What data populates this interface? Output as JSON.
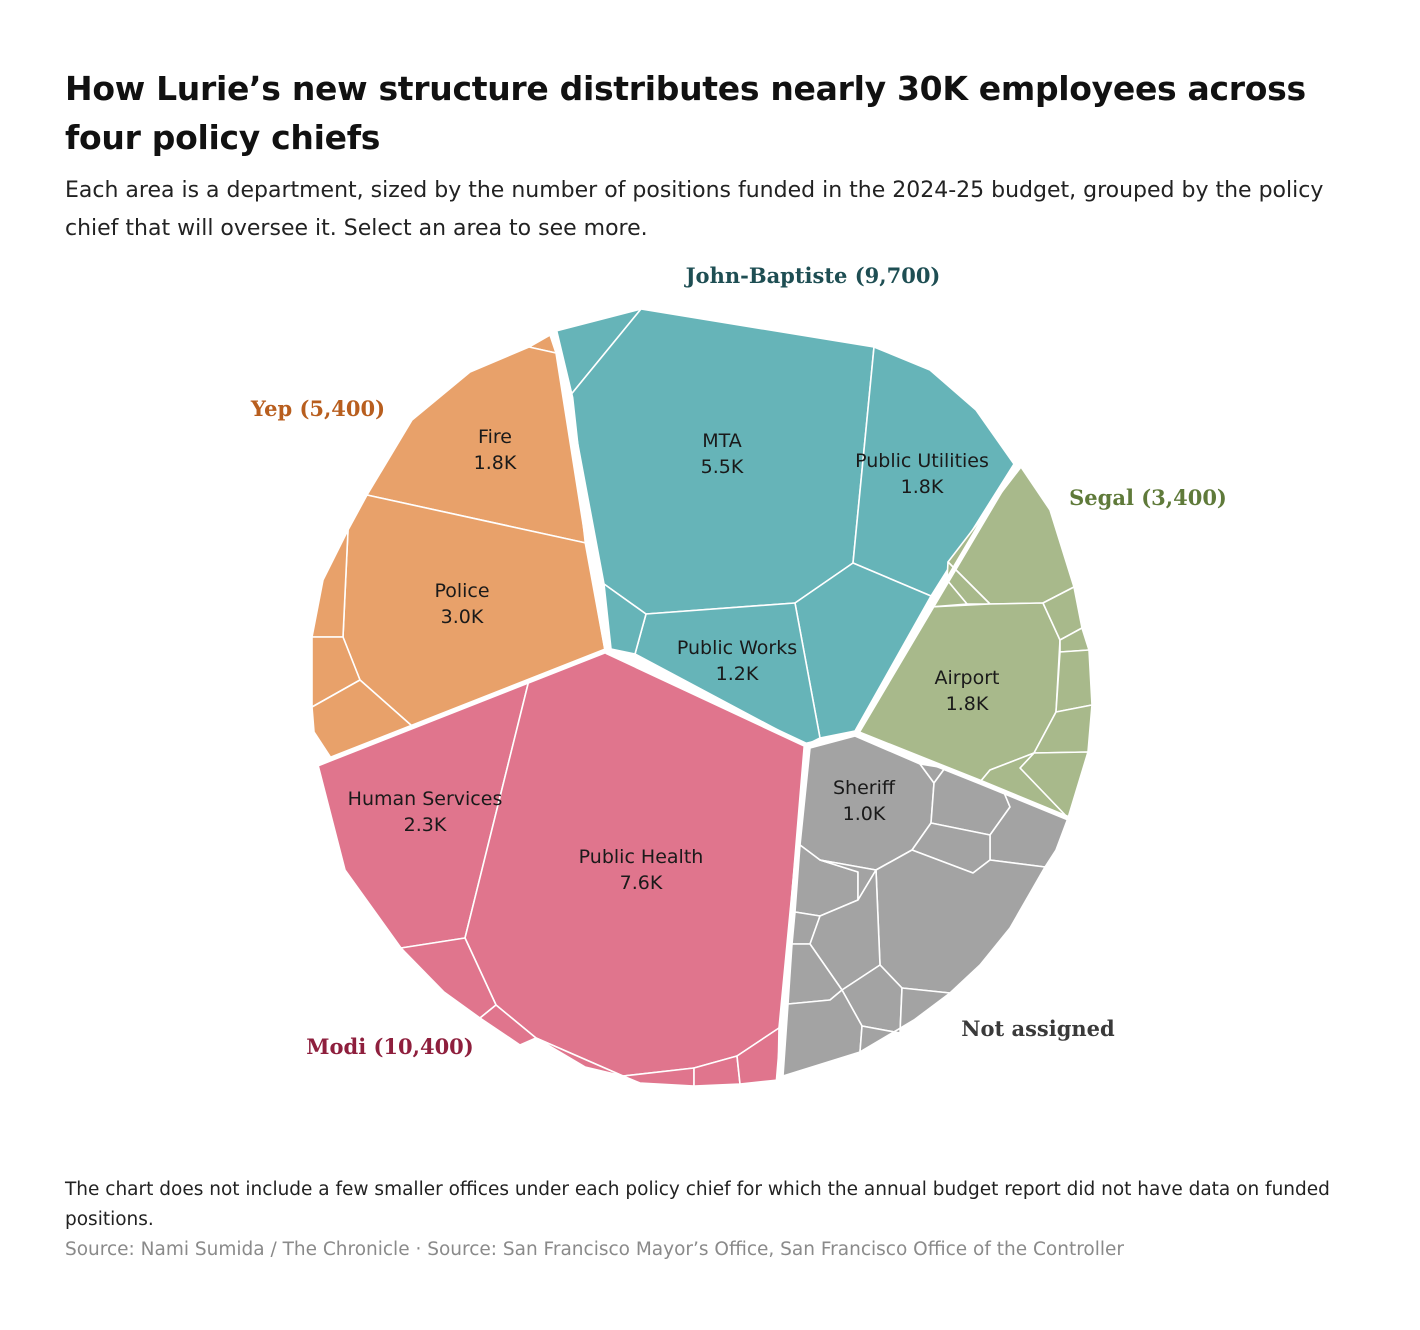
{
  "header": {
    "title": "How Lurie’s new structure distributes nearly 30K employees across four policy chiefs",
    "subtitle": "Each area is a department, sized by the number of positions funded in the 2024-25 budget, grouped by the policy chief that will oversee it. Select an area to see more."
  },
  "footer": {
    "note": "The chart does not include a few smaller offices under each policy chief for which the annual budget report did not have data on funded positions.",
    "source": "Source: Nami Sumida / The Chronicle · Source: San Francisco Mayor’s Office, San Francisco Office of the Controller"
  },
  "colors": {
    "John-Baptiste": "#66b4b8",
    "Yep": "#e8a16a",
    "Segal": "#a8b98b",
    "Modi": "#e0758d",
    "Not assigned": "#a3a3a3",
    "label_John-Baptiste": "#1e4e53",
    "label_Yep": "#b85e1e",
    "label_Segal": "#5f7a3a",
    "label_Modi": "#8e1f3d",
    "label_Not assigned": "#3a3a3a"
  },
  "chart_data": {
    "type": "voronoi-treemap",
    "units": "funded positions (2024-25 budget)",
    "groups": [
      {
        "name": "John-Baptiste",
        "label": "John-Baptiste (9,700)",
        "total": 9700,
        "departments": [
          {
            "name": "MTA",
            "value_label": "5.5K",
            "value": 5500
          },
          {
            "name": "Public Utilities",
            "value_label": "1.8K",
            "value": 1800
          },
          {
            "name": "Public Works",
            "value_label": "1.2K",
            "value": 1200
          }
        ]
      },
      {
        "name": "Yep",
        "label": "Yep (5,400)",
        "total": 5400,
        "departments": [
          {
            "name": "Fire",
            "value_label": "1.8K",
            "value": 1800
          },
          {
            "name": "Police",
            "value_label": "3.0K",
            "value": 3000
          }
        ]
      },
      {
        "name": "Segal",
        "label": "Segal (3,400)",
        "total": 3400,
        "departments": [
          {
            "name": "Airport",
            "value_label": "1.8K",
            "value": 1800
          }
        ]
      },
      {
        "name": "Modi",
        "label": "Modi (10,400)",
        "total": 10400,
        "departments": [
          {
            "name": "Human Services",
            "value_label": "2.3K",
            "value": 2300
          },
          {
            "name": "Public Health",
            "value_label": "7.6K",
            "value": 7600
          }
        ]
      },
      {
        "name": "Not assigned",
        "label": "Not assigned",
        "departments": [
          {
            "name": "Sheriff",
            "value_label": "1.0K",
            "value": 1000
          }
        ]
      }
    ]
  }
}
